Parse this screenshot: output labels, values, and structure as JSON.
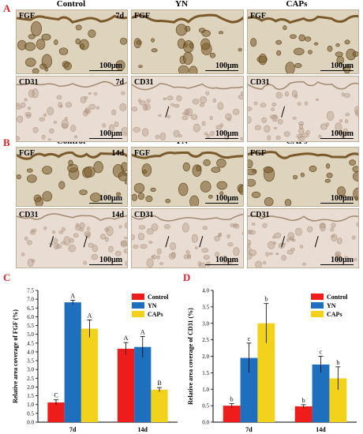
{
  "figure": {
    "section_labels": [
      "A",
      "B",
      "C",
      "D"
    ],
    "column_headers": [
      "Control",
      "YN",
      "CAPs"
    ],
    "panel_rows": [
      {
        "stain": "FGF",
        "day": "7d",
        "scale_bar": "100μm"
      },
      {
        "stain": "CD31",
        "day": "7d",
        "scale_bar": "100μm"
      },
      {
        "stain": "FGF",
        "day": "14d",
        "scale_bar": "100μm"
      },
      {
        "stain": "CD31",
        "day": "14d",
        "scale_bar": "100μm"
      }
    ]
  },
  "chart_data": [
    {
      "type": "bar",
      "ylabel": "Relative area coverage of FGF (%)",
      "ylim": [
        0,
        7.5
      ],
      "yticks": [
        "0.0",
        "0.5",
        "1.0",
        "1.5",
        "2.0",
        "2.5",
        "3.0",
        "3.5",
        "4.0",
        "4.5",
        "5.0",
        "5.5",
        "6.0",
        "6.5",
        "7.0",
        "7.5"
      ],
      "categories": [
        "7d",
        "14d"
      ],
      "legend_position": "top-right",
      "series": [
        {
          "name": "Control",
          "color": "#ef1c1c",
          "values": [
            1.12,
            4.18
          ],
          "errors": [
            0.15,
            0.35
          ],
          "labels": [
            "C",
            "A"
          ]
        },
        {
          "name": "YN",
          "color": "#1f6fbf",
          "values": [
            6.82,
            4.28
          ],
          "errors": [
            0.12,
            0.6
          ],
          "labels": [
            "A",
            "A"
          ]
        },
        {
          "name": "CAPs",
          "color": "#f2d21b",
          "values": [
            5.32,
            1.85
          ],
          "errors": [
            0.5,
            0.12
          ],
          "labels": [
            "A",
            "B"
          ]
        }
      ]
    },
    {
      "type": "bar",
      "ylabel": "Relative area coverage of CD31 (%)",
      "ylim": [
        0,
        4.0
      ],
      "yticks": [
        "0.0",
        "0.5",
        "1.0",
        "1.5",
        "2.0",
        "2.5",
        "3.0",
        "3.5",
        "4.0"
      ],
      "categories": [
        "7d",
        "14d"
      ],
      "legend_position": "top-right",
      "series": [
        {
          "name": "Control",
          "color": "#ef1c1c",
          "values": [
            0.5,
            0.48
          ],
          "errors": [
            0.06,
            0.05
          ],
          "labels": [
            "b",
            "b"
          ]
        },
        {
          "name": "YN",
          "color": "#1f6fbf",
          "values": [
            1.95,
            1.75
          ],
          "errors": [
            0.45,
            0.25
          ],
          "labels": [
            "c",
            "c"
          ]
        },
        {
          "name": "CAPs",
          "color": "#f2d21b",
          "values": [
            3.0,
            1.33
          ],
          "errors": [
            0.6,
            0.35
          ],
          "labels": [
            "b",
            "b"
          ]
        }
      ]
    }
  ]
}
